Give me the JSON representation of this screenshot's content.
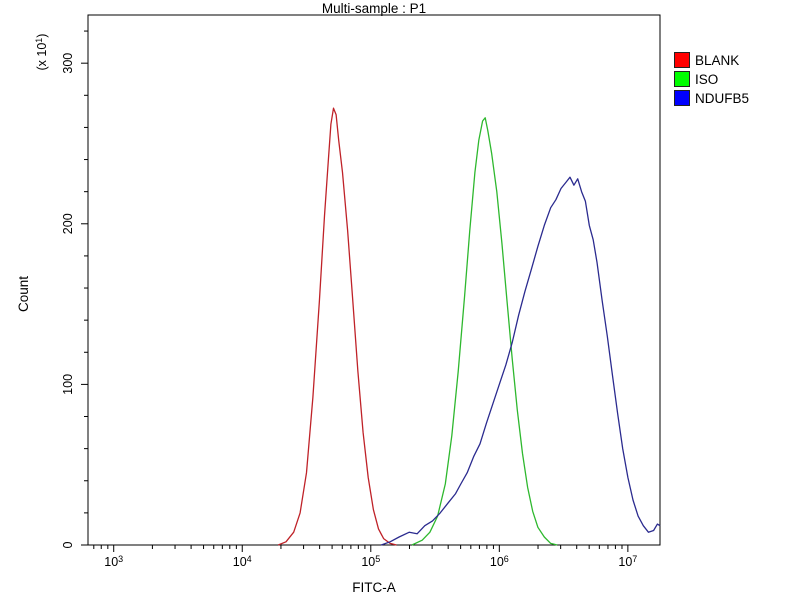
{
  "chart_data": {
    "type": "line",
    "subtype": "flow-cytometry-histogram-overlay",
    "title": "Multi-sample : P1",
    "xlabel": "FITC-A",
    "ylabel": "Count",
    "y_multiplier": "(x 10^1)",
    "x_scale": "log10",
    "x_ticks": [
      "10^3",
      "10^4",
      "10^5",
      "10^6",
      "10^7"
    ],
    "x_range_log10": [
      2.8,
      7.25
    ],
    "y_ticks": [
      0,
      100,
      200,
      300
    ],
    "y_range": [
      0,
      330
    ],
    "grid": false,
    "legend_position": "top-right",
    "series": [
      {
        "name": "BLANK",
        "color": "#bf2228",
        "swatch": "#ff0000",
        "peak_x": 51000,
        "peak_count": 272,
        "points": [
          [
            4.28,
            0
          ],
          [
            4.34,
            2
          ],
          [
            4.4,
            8
          ],
          [
            4.45,
            20
          ],
          [
            4.5,
            45
          ],
          [
            4.55,
            92
          ],
          [
            4.6,
            152
          ],
          [
            4.64,
            205
          ],
          [
            4.67,
            240
          ],
          [
            4.69,
            262
          ],
          [
            4.71,
            272
          ],
          [
            4.73,
            268
          ],
          [
            4.75,
            252
          ],
          [
            4.78,
            232
          ],
          [
            4.82,
            196
          ],
          [
            4.86,
            152
          ],
          [
            4.9,
            108
          ],
          [
            4.94,
            70
          ],
          [
            4.98,
            42
          ],
          [
            5.02,
            22
          ],
          [
            5.06,
            10
          ],
          [
            5.1,
            4
          ],
          [
            5.15,
            1
          ],
          [
            5.2,
            0
          ]
        ]
      },
      {
        "name": "ISO",
        "color": "#2eb82e",
        "swatch": "#00ff00",
        "peak_x": 780000,
        "peak_count": 266,
        "points": [
          [
            5.32,
            0
          ],
          [
            5.4,
            3
          ],
          [
            5.46,
            8
          ],
          [
            5.52,
            18
          ],
          [
            5.58,
            38
          ],
          [
            5.63,
            68
          ],
          [
            5.68,
            108
          ],
          [
            5.73,
            155
          ],
          [
            5.77,
            196
          ],
          [
            5.81,
            232
          ],
          [
            5.84,
            252
          ],
          [
            5.87,
            264
          ],
          [
            5.89,
            266
          ],
          [
            5.91,
            258
          ],
          [
            5.94,
            244
          ],
          [
            5.98,
            220
          ],
          [
            6.02,
            188
          ],
          [
            6.06,
            152
          ],
          [
            6.1,
            116
          ],
          [
            6.14,
            84
          ],
          [
            6.18,
            57
          ],
          [
            6.22,
            36
          ],
          [
            6.26,
            21
          ],
          [
            6.3,
            11
          ],
          [
            6.35,
            5
          ],
          [
            6.4,
            1
          ],
          [
            6.45,
            0
          ]
        ]
      },
      {
        "name": "NDUFB5",
        "color": "#2b2b8f",
        "swatch": "#0000ff",
        "peak_x": 3500000,
        "peak_count": 229,
        "points": [
          [
            5.08,
            0
          ],
          [
            5.15,
            2
          ],
          [
            5.22,
            5
          ],
          [
            5.3,
            8
          ],
          [
            5.36,
            7
          ],
          [
            5.42,
            12
          ],
          [
            5.48,
            15
          ],
          [
            5.54,
            20
          ],
          [
            5.6,
            26
          ],
          [
            5.66,
            32
          ],
          [
            5.7,
            38
          ],
          [
            5.75,
            45
          ],
          [
            5.8,
            55
          ],
          [
            5.85,
            63
          ],
          [
            5.9,
            76
          ],
          [
            5.95,
            88
          ],
          [
            6.0,
            100
          ],
          [
            6.05,
            112
          ],
          [
            6.1,
            126
          ],
          [
            6.15,
            143
          ],
          [
            6.2,
            158
          ],
          [
            6.25,
            172
          ],
          [
            6.3,
            186
          ],
          [
            6.35,
            199
          ],
          [
            6.4,
            210
          ],
          [
            6.44,
            215
          ],
          [
            6.48,
            222
          ],
          [
            6.52,
            226
          ],
          [
            6.55,
            229
          ],
          [
            6.58,
            224
          ],
          [
            6.61,
            228
          ],
          [
            6.64,
            220
          ],
          [
            6.67,
            214
          ],
          [
            6.7,
            199
          ],
          [
            6.73,
            190
          ],
          [
            6.76,
            176
          ],
          [
            6.8,
            152
          ],
          [
            6.84,
            130
          ],
          [
            6.88,
            106
          ],
          [
            6.92,
            82
          ],
          [
            6.96,
            60
          ],
          [
            7.0,
            42
          ],
          [
            7.04,
            28
          ],
          [
            7.08,
            18
          ],
          [
            7.12,
            12
          ],
          [
            7.16,
            8
          ],
          [
            7.2,
            9
          ],
          [
            7.23,
            13
          ],
          [
            7.25,
            12
          ]
        ]
      }
    ]
  }
}
